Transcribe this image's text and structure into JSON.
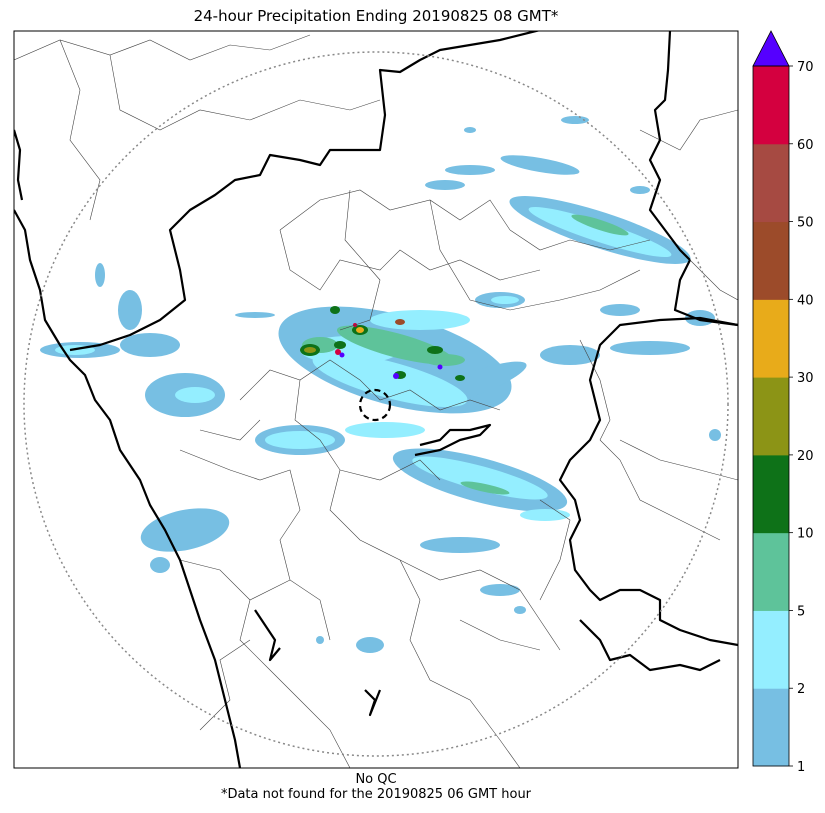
{
  "title": "24-hour Precipitation Ending 20190825 08 GMT*",
  "caption": {
    "line1": "No QC",
    "line2": "*Data not found for the 20190825 06 GMT hour"
  },
  "colorbar": {
    "levels": [
      1,
      2,
      5,
      10,
      20,
      30,
      40,
      50,
      60,
      70
    ],
    "tick_labels": [
      "1",
      "2",
      "5",
      "10",
      "20",
      "30",
      "40",
      "50",
      "60",
      "70"
    ],
    "colors": [
      "#77bfe3",
      "#94eeff",
      "#5ec39a",
      "#0e7218",
      "#8c9416",
      "#e8ab1a",
      "#9c4b2a",
      "#a64a42",
      "#d4003f"
    ],
    "extend_max_color": "#5500ff",
    "extend": "max"
  },
  "map": {
    "colors": {
      "background": "#ffffff",
      "border_major": "#000000",
      "border_minor": "#444444",
      "range_ring": "#888888"
    },
    "radar_site_icon": "radar-site-dashed-circle-icon"
  }
}
